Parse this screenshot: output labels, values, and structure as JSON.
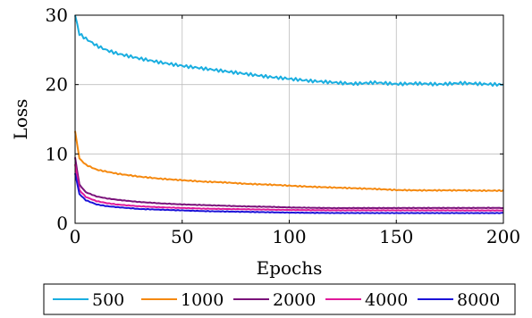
{
  "chart_data": {
    "type": "line",
    "title": "",
    "xlabel": "Epochs",
    "ylabel": "Loss",
    "xlim": [
      0,
      200
    ],
    "ylim": [
      0,
      30
    ],
    "xticks": [
      "0",
      "50",
      "100",
      "150",
      "200"
    ],
    "yticks": [
      "0",
      "10",
      "20",
      "30"
    ],
    "grid": true,
    "legend": "bottom-outside",
    "series": [
      {
        "name": "500",
        "color": "#1aaee0",
        "x": [
          0,
          2,
          5,
          10,
          15,
          20,
          30,
          40,
          50,
          60,
          70,
          80,
          90,
          100,
          110,
          120,
          130,
          140,
          150,
          160,
          170,
          180,
          190,
          200
        ],
        "y": [
          30,
          27.3,
          26.6,
          25.6,
          24.9,
          24.4,
          23.7,
          23.1,
          22.6,
          22.2,
          21.8,
          21.4,
          21.0,
          20.7,
          20.4,
          20.2,
          20.0,
          20.2,
          20.0,
          20.1,
          20.0,
          20.2,
          20.1,
          20.0
        ]
      },
      {
        "name": "1000",
        "color": "#f5890f",
        "x": [
          0,
          2,
          5,
          10,
          15,
          20,
          30,
          40,
          50,
          60,
          70,
          80,
          90,
          100,
          110,
          120,
          130,
          140,
          150,
          160,
          170,
          180,
          190,
          200
        ],
        "y": [
          13.3,
          9.3,
          8.4,
          7.7,
          7.4,
          7.1,
          6.7,
          6.4,
          6.2,
          6.0,
          5.9,
          5.7,
          5.6,
          5.45,
          5.3,
          5.2,
          5.1,
          5.0,
          4.85,
          4.8,
          4.8,
          4.8,
          4.75,
          4.75
        ]
      },
      {
        "name": "2000",
        "color": "#7a127a",
        "x": [
          0,
          2,
          5,
          10,
          15,
          20,
          30,
          40,
          50,
          60,
          70,
          80,
          90,
          100,
          120,
          140,
          160,
          180,
          200
        ],
        "y": [
          9.5,
          5.6,
          4.5,
          3.9,
          3.6,
          3.4,
          3.1,
          2.9,
          2.75,
          2.65,
          2.55,
          2.45,
          2.4,
          2.3,
          2.2,
          2.2,
          2.2,
          2.2,
          2.2
        ]
      },
      {
        "name": "4000",
        "color": "#e0199a",
        "x": [
          0,
          2,
          5,
          10,
          15,
          20,
          30,
          40,
          50,
          60,
          70,
          80,
          90,
          100,
          120,
          140,
          160,
          180,
          200
        ],
        "y": [
          8.5,
          4.8,
          3.8,
          3.2,
          2.9,
          2.7,
          2.45,
          2.3,
          2.2,
          2.1,
          2.05,
          2.0,
          1.95,
          1.9,
          1.85,
          1.85,
          1.85,
          1.85,
          1.85
        ]
      },
      {
        "name": "8000",
        "color": "#1a12d8",
        "x": [
          0,
          2,
          5,
          10,
          15,
          20,
          30,
          40,
          50,
          60,
          70,
          80,
          90,
          100,
          120,
          140,
          160,
          180,
          200
        ],
        "y": [
          7.2,
          4.2,
          3.3,
          2.7,
          2.45,
          2.3,
          2.05,
          1.95,
          1.85,
          1.75,
          1.7,
          1.65,
          1.6,
          1.55,
          1.5,
          1.5,
          1.5,
          1.5,
          1.5
        ]
      }
    ]
  }
}
